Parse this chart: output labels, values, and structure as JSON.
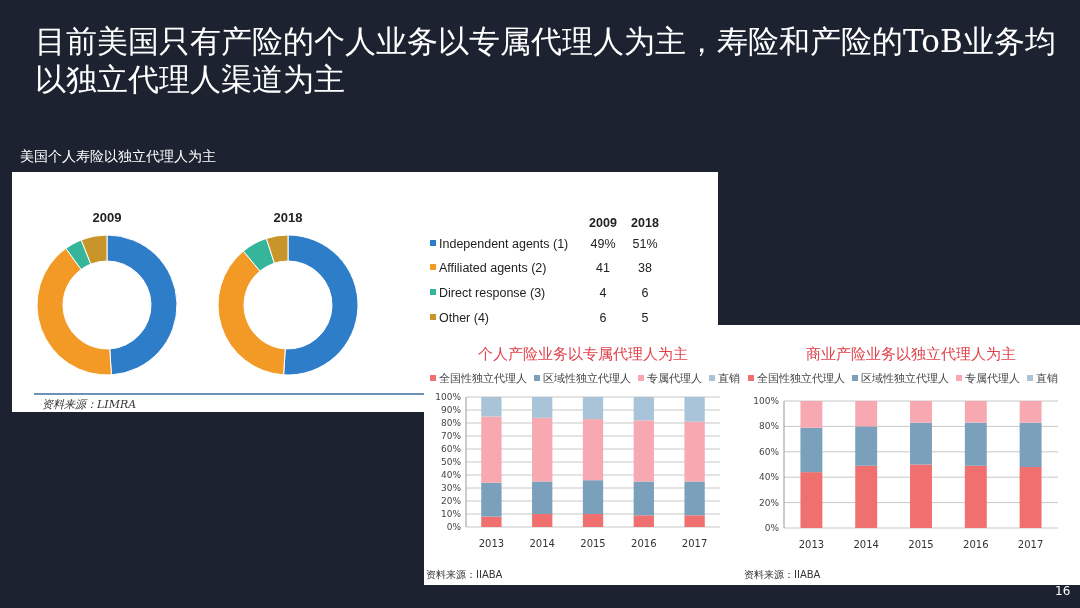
{
  "chart_data": [
    {
      "type": "donut",
      "categories": [
        "Independent agents (1)",
        "Affiliated agents (2)",
        "Direct response (3)",
        "Other (4)"
      ],
      "colors": [
        "#2e7dc8",
        "#f39a26",
        "#35b59a",
        "#c8952a"
      ],
      "legend": "right",
      "series": [
        {
          "name": "2009",
          "values": [
            49,
            41,
            4,
            6
          ],
          "value_labels": [
            "49%",
            "41",
            "4",
            "6"
          ]
        },
        {
          "name": "2018",
          "values": [
            51,
            38,
            6,
            5
          ],
          "value_labels": [
            "51%",
            "38",
            "6",
            "5"
          ]
        }
      ],
      "annotations": [
        "目前美国只有产险的个人业务以专属代理人为主，寿险和产险的ToB业务均以独立代理人渠道为主",
        "美国个人寿险以独立代理人为主",
        "资料来源：LIMRA"
      ]
    },
    {
      "type": "bar",
      "stacked": true,
      "title": "个人产险业务以专属代理人为主",
      "categories": [
        "2013",
        "2014",
        "2015",
        "2016",
        "2017"
      ],
      "series": [
        {
          "name": "全国性独立代理人",
          "color": "#f07070",
          "values": [
            8,
            10,
            10,
            9,
            9
          ]
        },
        {
          "name": "区域性独立代理人",
          "color": "#7ba0bc",
          "values": [
            26,
            25,
            26,
            26,
            26
          ]
        },
        {
          "name": "专属代理人",
          "color": "#f8a8b0",
          "values": [
            51,
            49,
            47,
            47,
            46
          ]
        },
        {
          "name": "直销",
          "color": "#a9c4d8",
          "values": [
            15,
            16,
            17,
            18,
            19
          ]
        }
      ],
      "ylim": [
        0,
        100
      ],
      "yticks": [
        {
          "value": 0,
          "label": "0%"
        },
        {
          "value": 10,
          "label": "10%"
        },
        {
          "value": 20,
          "label": "20%"
        },
        {
          "value": 30,
          "label": "30%"
        },
        {
          "value": 40,
          "label": "40%"
        },
        {
          "value": 50,
          "label": "50%"
        },
        {
          "value": 60,
          "label": "60%"
        },
        {
          "value": 70,
          "label": "70%"
        },
        {
          "value": 80,
          "label": "80%"
        },
        {
          "value": 90,
          "label": "90%"
        },
        {
          "value": 100,
          "label": "100%"
        }
      ],
      "grid": "y",
      "legend": "top",
      "annotations": [
        "资料来源：IIABA"
      ]
    },
    {
      "type": "bar",
      "stacked": true,
      "title": "商业产险业务以独立代理人为主",
      "categories": [
        "2013",
        "2014",
        "2015",
        "2016",
        "2017"
      ],
      "series": [
        {
          "name": "全国性独立代理人",
          "color": "#f07070",
          "values": [
            44,
            49,
            50,
            49,
            48
          ]
        },
        {
          "name": "区域性独立代理人",
          "color": "#7ba0bc",
          "values": [
            35,
            31,
            33,
            34,
            35
          ]
        },
        {
          "name": "专属代理人",
          "color": "#f8a8b0",
          "values": [
            21,
            20,
            17,
            17,
            17
          ]
        },
        {
          "name": "直销",
          "color": "#a9c4d8",
          "values": [
            0,
            0,
            0,
            0,
            0
          ]
        }
      ],
      "ylim": [
        0,
        100
      ],
      "yticks": [
        {
          "value": 0,
          "label": "0%"
        },
        {
          "value": 20,
          "label": "20%"
        },
        {
          "value": 40,
          "label": "40%"
        },
        {
          "value": 60,
          "label": "60%"
        },
        {
          "value": 80,
          "label": "80%"
        },
        {
          "value": 100,
          "label": "100%"
        }
      ],
      "grid": "y",
      "legend": "top",
      "annotations": [
        "资料来源：IIABA",
        "16"
      ]
    }
  ]
}
